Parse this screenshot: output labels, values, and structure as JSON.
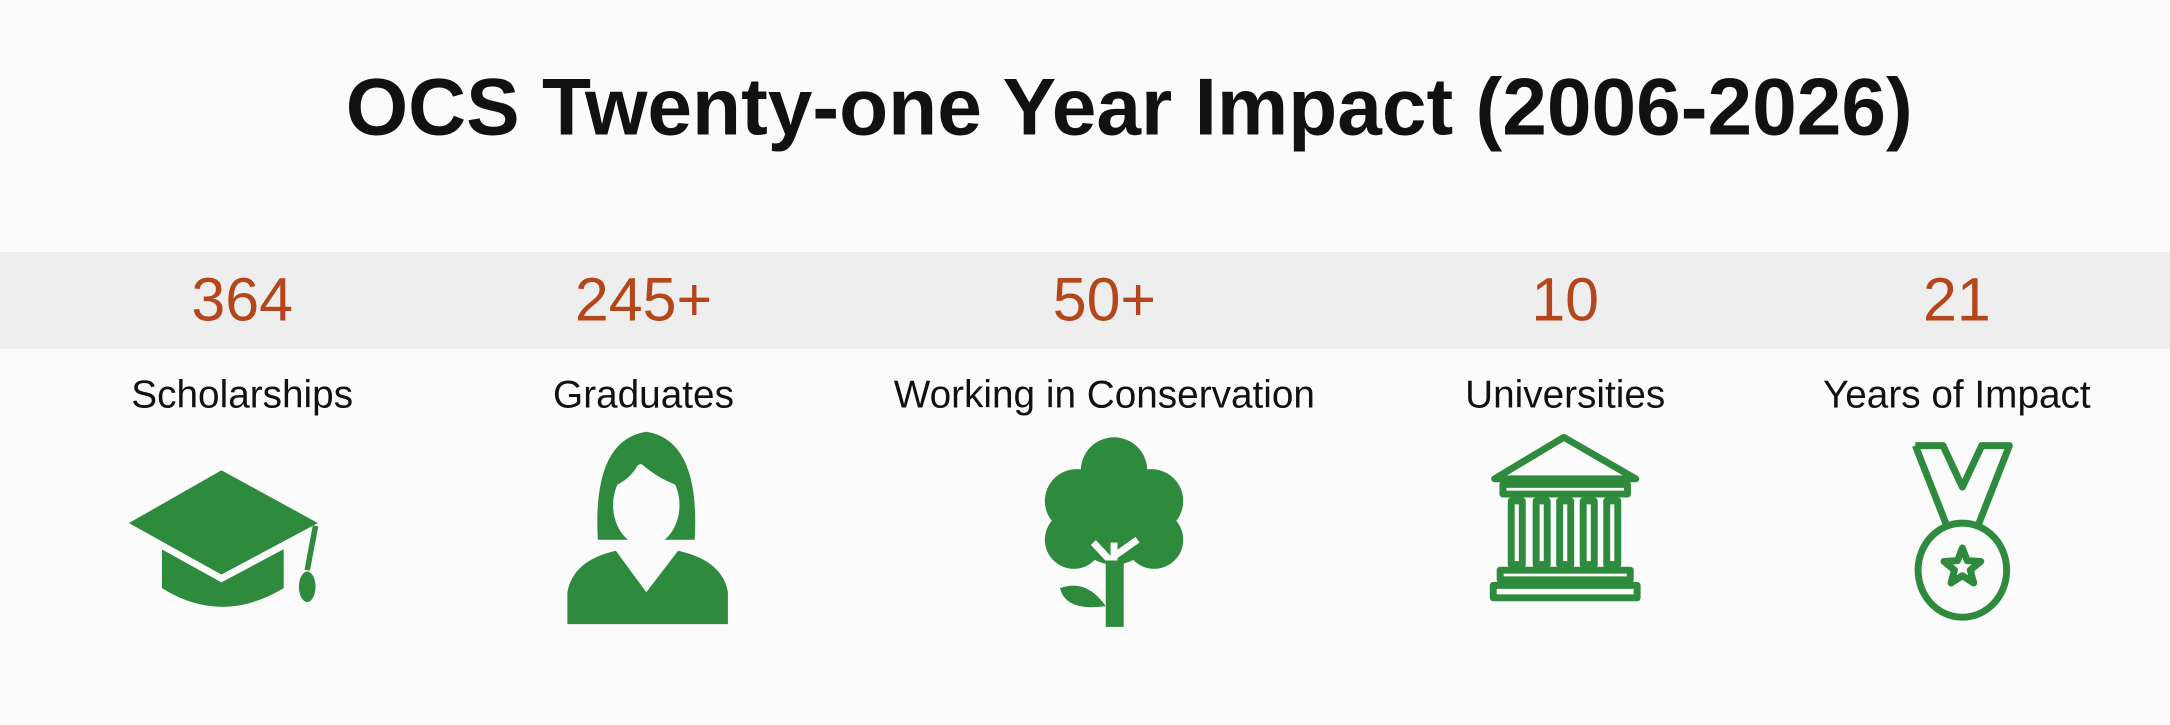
{
  "title": "OCS Twenty-one Year Impact (2006-2026)",
  "stats": [
    {
      "value": "364",
      "label": "Scholarships"
    },
    {
      "value": "245+",
      "label": "Graduates"
    },
    {
      "value": "50+",
      "label": "Working in Conservation"
    },
    {
      "value": "10",
      "label": "Universities"
    },
    {
      "value": "21",
      "label": "Years of Impact"
    }
  ]
}
